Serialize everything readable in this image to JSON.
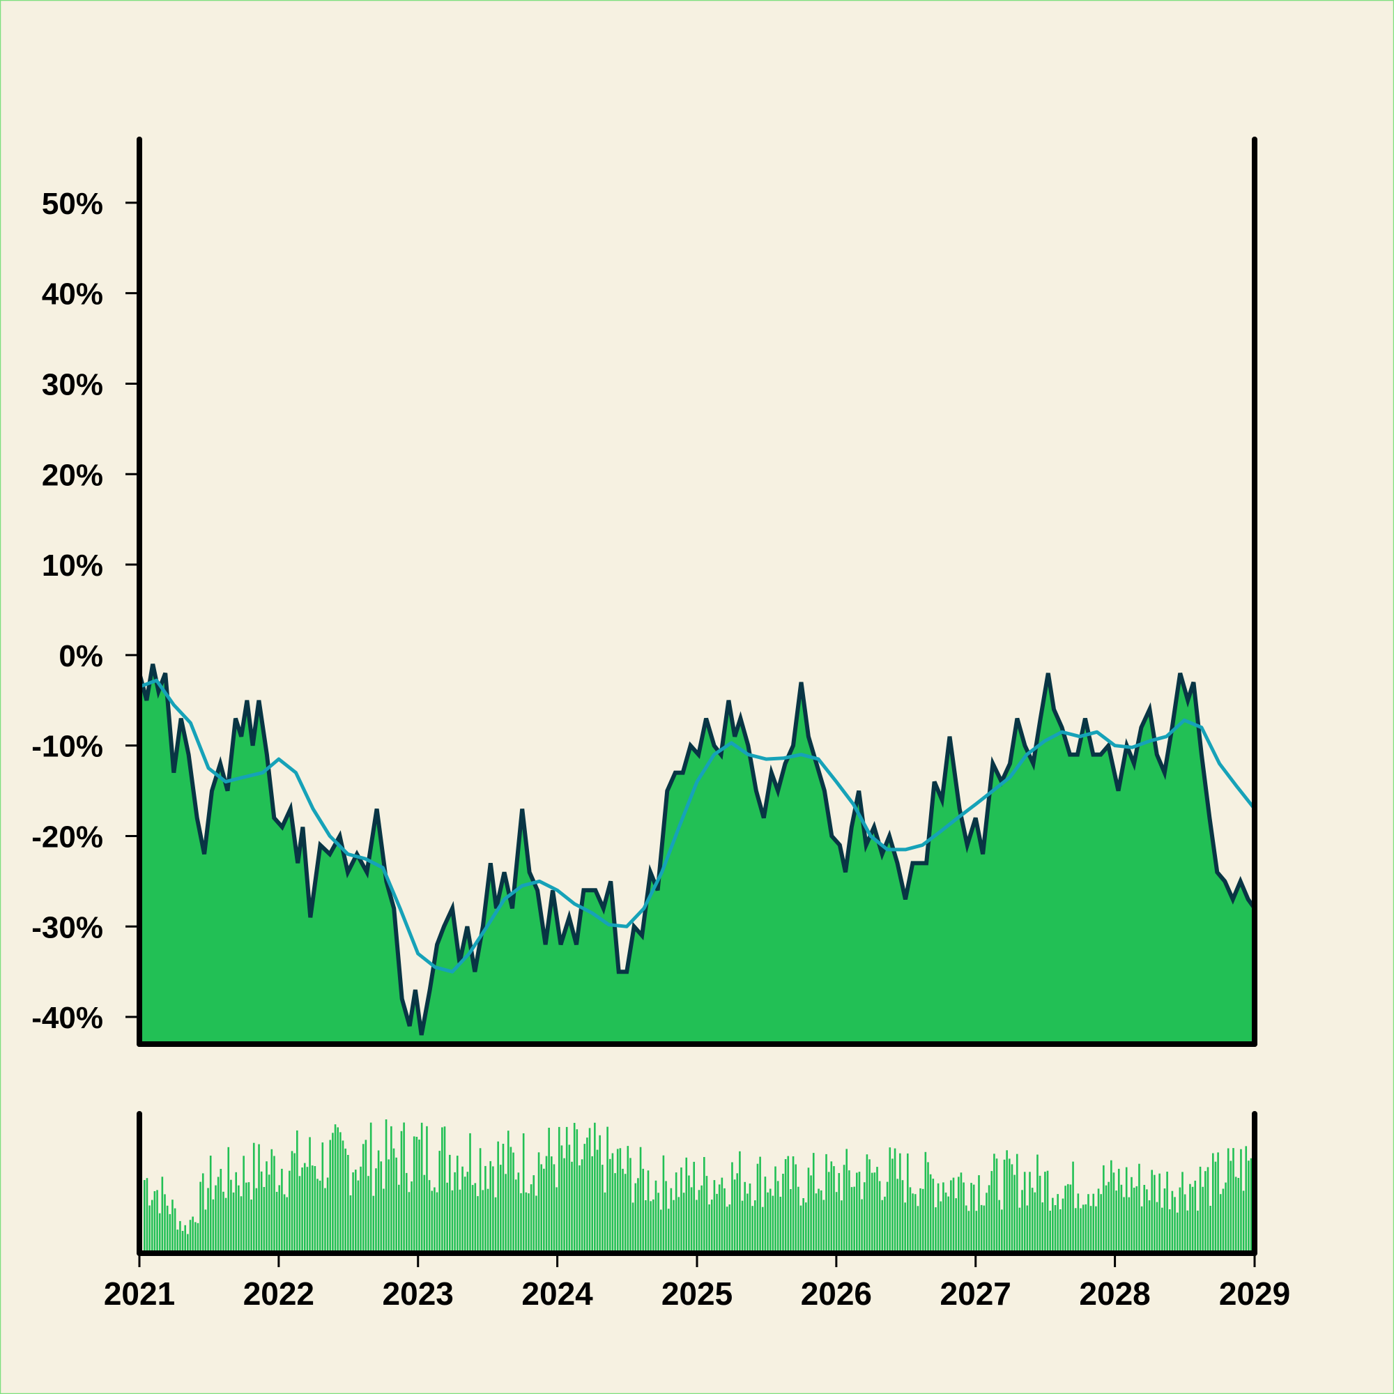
{
  "colors": {
    "background": "#f6f1e1",
    "area_fill": "#22c055",
    "price_line": "#083544",
    "moving_average": "#16a2b8",
    "volume": "#22c055",
    "axes": "#000000",
    "border": "#7ee07e"
  },
  "chart_data": [
    {
      "type": "area",
      "grid": false,
      "x_range": [
        "2021-01-01",
        "2029-01-01"
      ],
      "ylim": [
        -0.43,
        0.57
      ],
      "y_ticks": [
        {
          "value": 0.5,
          "label": "50%"
        },
        {
          "value": 0.4,
          "label": "40%"
        },
        {
          "value": 0.3,
          "label": "30%"
        },
        {
          "value": 0.2,
          "label": "20%"
        },
        {
          "value": 0.1,
          "label": "10%"
        },
        {
          "value": 0.0,
          "label": "0%"
        },
        {
          "value": -0.1,
          "label": "-10%"
        },
        {
          "value": -0.2,
          "label": "-20%"
        },
        {
          "value": -0.3,
          "label": "-30%"
        },
        {
          "value": -0.4,
          "label": "-40%"
        }
      ],
      "series": [
        {
          "style": "area",
          "points": [
            [
              "2021-01-01",
              -0.02
            ],
            [
              "2021-01-20",
              -0.05
            ],
            [
              "2021-02-05",
              -0.01
            ],
            [
              "2021-02-20",
              -0.04
            ],
            [
              "2021-03-10",
              -0.02
            ],
            [
              "2021-04-01",
              -0.13
            ],
            [
              "2021-04-20",
              -0.07
            ],
            [
              "2021-05-10",
              -0.11
            ],
            [
              "2021-06-01",
              -0.18
            ],
            [
              "2021-06-20",
              -0.22
            ],
            [
              "2021-07-10",
              -0.15
            ],
            [
              "2021-08-01",
              -0.12
            ],
            [
              "2021-08-20",
              -0.15
            ],
            [
              "2021-09-10",
              -0.07
            ],
            [
              "2021-09-25",
              -0.09
            ],
            [
              "2021-10-10",
              -0.05
            ],
            [
              "2021-10-25",
              -0.1
            ],
            [
              "2021-11-10",
              -0.05
            ],
            [
              "2021-12-01",
              -0.11
            ],
            [
              "2021-12-20",
              -0.18
            ],
            [
              "2022-01-10",
              -0.19
            ],
            [
              "2022-02-01",
              -0.17
            ],
            [
              "2022-02-20",
              -0.23
            ],
            [
              "2022-03-05",
              -0.19
            ],
            [
              "2022-03-25",
              -0.29
            ],
            [
              "2022-04-20",
              -0.21
            ],
            [
              "2022-05-15",
              -0.22
            ],
            [
              "2022-06-10",
              -0.2
            ],
            [
              "2022-07-01",
              -0.24
            ],
            [
              "2022-07-25",
              -0.22
            ],
            [
              "2022-08-20",
              -0.24
            ],
            [
              "2022-09-15",
              -0.17
            ],
            [
              "2022-10-10",
              -0.25
            ],
            [
              "2022-10-30",
              -0.28
            ],
            [
              "2022-11-20",
              -0.38
            ],
            [
              "2022-12-10",
              -0.41
            ],
            [
              "2022-12-25",
              -0.37
            ],
            [
              "2023-01-10",
              -0.42
            ],
            [
              "2023-02-01",
              -0.37
            ],
            [
              "2023-02-20",
              -0.32
            ],
            [
              "2023-03-10",
              -0.3
            ],
            [
              "2023-04-01",
              -0.28
            ],
            [
              "2023-04-20",
              -0.34
            ],
            [
              "2023-05-10",
              -0.3
            ],
            [
              "2023-05-30",
              -0.35
            ],
            [
              "2023-06-20",
              -0.3
            ],
            [
              "2023-07-10",
              -0.23
            ],
            [
              "2023-07-25",
              -0.28
            ],
            [
              "2023-08-15",
              -0.24
            ],
            [
              "2023-09-05",
              -0.28
            ],
            [
              "2023-10-01",
              -0.17
            ],
            [
              "2023-10-20",
              -0.24
            ],
            [
              "2023-11-10",
              -0.26
            ],
            [
              "2023-12-01",
              -0.32
            ],
            [
              "2023-12-20",
              -0.26
            ],
            [
              "2024-01-10",
              -0.32
            ],
            [
              "2024-02-01",
              -0.29
            ],
            [
              "2024-02-20",
              -0.32
            ],
            [
              "2024-03-10",
              -0.26
            ],
            [
              "2024-04-10",
              -0.26
            ],
            [
              "2024-05-01",
              -0.28
            ],
            [
              "2024-05-20",
              -0.25
            ],
            [
              "2024-06-10",
              -0.35
            ],
            [
              "2024-07-01",
              -0.35
            ],
            [
              "2024-07-20",
              -0.3
            ],
            [
              "2024-08-10",
              -0.31
            ],
            [
              "2024-09-01",
              -0.24
            ],
            [
              "2024-09-20",
              -0.26
            ],
            [
              "2024-10-15",
              -0.15
            ],
            [
              "2024-11-05",
              -0.13
            ],
            [
              "2024-11-25",
              -0.13
            ],
            [
              "2024-12-15",
              -0.1
            ],
            [
              "2025-01-05",
              -0.11
            ],
            [
              "2025-01-25",
              -0.07
            ],
            [
              "2025-02-15",
              -0.1
            ],
            [
              "2025-03-05",
              -0.11
            ],
            [
              "2025-03-25",
              -0.05
            ],
            [
              "2025-04-10",
              -0.09
            ],
            [
              "2025-04-25",
              -0.07
            ],
            [
              "2025-05-15",
              -0.1
            ],
            [
              "2025-06-05",
              -0.15
            ],
            [
              "2025-06-25",
              -0.18
            ],
            [
              "2025-07-15",
              -0.13
            ],
            [
              "2025-08-01",
              -0.15
            ],
            [
              "2025-08-20",
              -0.12
            ],
            [
              "2025-09-10",
              -0.1
            ],
            [
              "2025-10-01",
              -0.03
            ],
            [
              "2025-10-20",
              -0.09
            ],
            [
              "2025-11-10",
              -0.12
            ],
            [
              "2025-12-01",
              -0.15
            ],
            [
              "2025-12-20",
              -0.2
            ],
            [
              "2026-01-10",
              -0.21
            ],
            [
              "2026-01-25",
              -0.24
            ],
            [
              "2026-02-10",
              -0.19
            ],
            [
              "2026-03-01",
              -0.15
            ],
            [
              "2026-03-20",
              -0.21
            ],
            [
              "2026-04-10",
              -0.19
            ],
            [
              "2026-05-01",
              -0.22
            ],
            [
              "2026-05-20",
              -0.2
            ],
            [
              "2026-06-10",
              -0.23
            ],
            [
              "2026-07-01",
              -0.27
            ],
            [
              "2026-07-20",
              -0.23
            ],
            [
              "2026-08-10",
              -0.23
            ],
            [
              "2026-08-25",
              -0.23
            ],
            [
              "2026-09-15",
              -0.14
            ],
            [
              "2026-10-05",
              -0.16
            ],
            [
              "2026-10-25",
              -0.09
            ],
            [
              "2026-11-20",
              -0.17
            ],
            [
              "2026-12-10",
              -0.21
            ],
            [
              "2027-01-01",
              -0.18
            ],
            [
              "2027-01-20",
              -0.22
            ],
            [
              "2027-02-15",
              -0.12
            ],
            [
              "2027-03-10",
              -0.14
            ],
            [
              "2027-04-01",
              -0.12
            ],
            [
              "2027-04-20",
              -0.07
            ],
            [
              "2027-05-10",
              -0.1
            ],
            [
              "2027-06-01",
              -0.12
            ],
            [
              "2027-06-20",
              -0.07
            ],
            [
              "2027-07-10",
              -0.02
            ],
            [
              "2027-07-25",
              -0.06
            ],
            [
              "2027-08-15",
              -0.08
            ],
            [
              "2027-09-05",
              -0.11
            ],
            [
              "2027-09-25",
              -0.11
            ],
            [
              "2027-10-15",
              -0.07
            ],
            [
              "2027-11-05",
              -0.11
            ],
            [
              "2027-11-25",
              -0.11
            ],
            [
              "2027-12-15",
              -0.1
            ],
            [
              "2028-01-10",
              -0.15
            ],
            [
              "2028-02-01",
              -0.1
            ],
            [
              "2028-02-20",
              -0.12
            ],
            [
              "2028-03-10",
              -0.08
            ],
            [
              "2028-04-01",
              -0.06
            ],
            [
              "2028-04-20",
              -0.11
            ],
            [
              "2028-05-10",
              -0.13
            ],
            [
              "2028-05-30",
              -0.08
            ],
            [
              "2028-06-20",
              -0.02
            ],
            [
              "2028-07-10",
              -0.05
            ],
            [
              "2028-07-25",
              -0.03
            ],
            [
              "2028-08-15",
              -0.11
            ],
            [
              "2028-09-05",
              -0.18
            ],
            [
              "2028-09-25",
              -0.24
            ],
            [
              "2028-10-15",
              -0.25
            ],
            [
              "2028-11-05",
              -0.27
            ],
            [
              "2028-11-25",
              -0.25
            ],
            [
              "2028-12-15",
              -0.27
            ],
            [
              "2029-01-01",
              -0.28
            ]
          ]
        },
        {
          "style": "line",
          "points": [
            [
              "2021-01-01",
              -0.035
            ],
            [
              "2021-02-15",
              -0.028
            ],
            [
              "2021-04-01",
              -0.055
            ],
            [
              "2021-05-15",
              -0.075
            ],
            [
              "2021-07-01",
              -0.125
            ],
            [
              "2021-08-15",
              -0.14
            ],
            [
              "2021-10-01",
              -0.135
            ],
            [
              "2021-11-20",
              -0.13
            ],
            [
              "2022-01-01",
              -0.115
            ],
            [
              "2022-02-15",
              -0.13
            ],
            [
              "2022-04-01",
              -0.17
            ],
            [
              "2022-05-15",
              -0.2
            ],
            [
              "2022-07-01",
              -0.22
            ],
            [
              "2022-08-15",
              -0.225
            ],
            [
              "2022-10-01",
              -0.235
            ],
            [
              "2022-11-15",
              -0.28
            ],
            [
              "2023-01-01",
              -0.33
            ],
            [
              "2023-02-15",
              -0.345
            ],
            [
              "2023-04-01",
              -0.35
            ],
            [
              "2023-05-15",
              -0.33
            ],
            [
              "2023-07-01",
              -0.3
            ],
            [
              "2023-08-15",
              -0.27
            ],
            [
              "2023-10-01",
              -0.255
            ],
            [
              "2023-11-15",
              -0.25
            ],
            [
              "2024-01-01",
              -0.26
            ],
            [
              "2024-02-15",
              -0.275
            ],
            [
              "2024-04-01",
              -0.285
            ],
            [
              "2024-05-15",
              -0.298
            ],
            [
              "2024-07-01",
              -0.3
            ],
            [
              "2024-08-15",
              -0.28
            ],
            [
              "2024-10-01",
              -0.24
            ],
            [
              "2024-11-15",
              -0.19
            ],
            [
              "2025-01-01",
              -0.14
            ],
            [
              "2025-02-15",
              -0.11
            ],
            [
              "2025-04-01",
              -0.097
            ],
            [
              "2025-05-15",
              -0.11
            ],
            [
              "2025-07-01",
              -0.115
            ],
            [
              "2025-08-15",
              -0.114
            ],
            [
              "2025-10-01",
              -0.11
            ],
            [
              "2025-11-15",
              -0.115
            ],
            [
              "2026-01-01",
              -0.14
            ],
            [
              "2026-02-15",
              -0.165
            ],
            [
              "2026-04-01",
              -0.2
            ],
            [
              "2026-05-15",
              -0.215
            ],
            [
              "2026-07-01",
              -0.215
            ],
            [
              "2026-08-15",
              -0.21
            ],
            [
              "2026-10-01",
              -0.195
            ],
            [
              "2026-11-15",
              -0.18
            ],
            [
              "2027-01-01",
              -0.165
            ],
            [
              "2027-02-15",
              -0.15
            ],
            [
              "2027-04-01",
              -0.135
            ],
            [
              "2027-05-15",
              -0.11
            ],
            [
              "2027-07-01",
              -0.095
            ],
            [
              "2027-08-15",
              -0.085
            ],
            [
              "2027-10-01",
              -0.09
            ],
            [
              "2027-11-15",
              -0.085
            ],
            [
              "2028-01-01",
              -0.1
            ],
            [
              "2028-02-15",
              -0.102
            ],
            [
              "2028-04-01",
              -0.095
            ],
            [
              "2028-05-15",
              -0.09
            ],
            [
              "2028-07-01",
              -0.072
            ],
            [
              "2028-08-15",
              -0.08
            ],
            [
              "2028-10-01",
              -0.12
            ],
            [
              "2028-11-15",
              -0.145
            ],
            [
              "2029-01-01",
              -0.17
            ]
          ]
        }
      ]
    },
    {
      "type": "bar",
      "grid": false,
      "x_range": [
        "2021-01-01",
        "2029-01-01"
      ],
      "x_ticks": [
        "2021",
        "2022",
        "2023",
        "2024",
        "2025",
        "2026",
        "2027",
        "2028",
        "2029"
      ],
      "ylim": [
        0,
        1.0
      ],
      "volume_profile": [
        [
          "2021-01-01",
          0.6
        ],
        [
          "2021-03-01",
          0.45
        ],
        [
          "2021-05-01",
          0.18
        ],
        [
          "2021-07-01",
          0.55
        ],
        [
          "2021-09-01",
          0.6
        ],
        [
          "2022-01-01",
          0.68
        ],
        [
          "2022-05-01",
          0.72
        ],
        [
          "2022-09-01",
          0.74
        ],
        [
          "2023-01-01",
          0.78
        ],
        [
          "2023-05-01",
          0.76
        ],
        [
          "2023-09-01",
          0.7
        ],
        [
          "2024-01-01",
          0.74
        ],
        [
          "2024-05-01",
          0.72
        ],
        [
          "2024-09-01",
          0.55
        ],
        [
          "2025-01-01",
          0.56
        ],
        [
          "2025-05-01",
          0.6
        ],
        [
          "2025-09-01",
          0.55
        ],
        [
          "2026-01-01",
          0.58
        ],
        [
          "2026-05-01",
          0.62
        ],
        [
          "2026-09-01",
          0.56
        ],
        [
          "2027-01-01",
          0.55
        ],
        [
          "2027-05-01",
          0.58
        ],
        [
          "2027-09-01",
          0.52
        ],
        [
          "2028-01-01",
          0.55
        ],
        [
          "2028-05-01",
          0.52
        ],
        [
          "2028-09-01",
          0.55
        ],
        [
          "2029-01-01",
          0.7
        ]
      ]
    }
  ]
}
